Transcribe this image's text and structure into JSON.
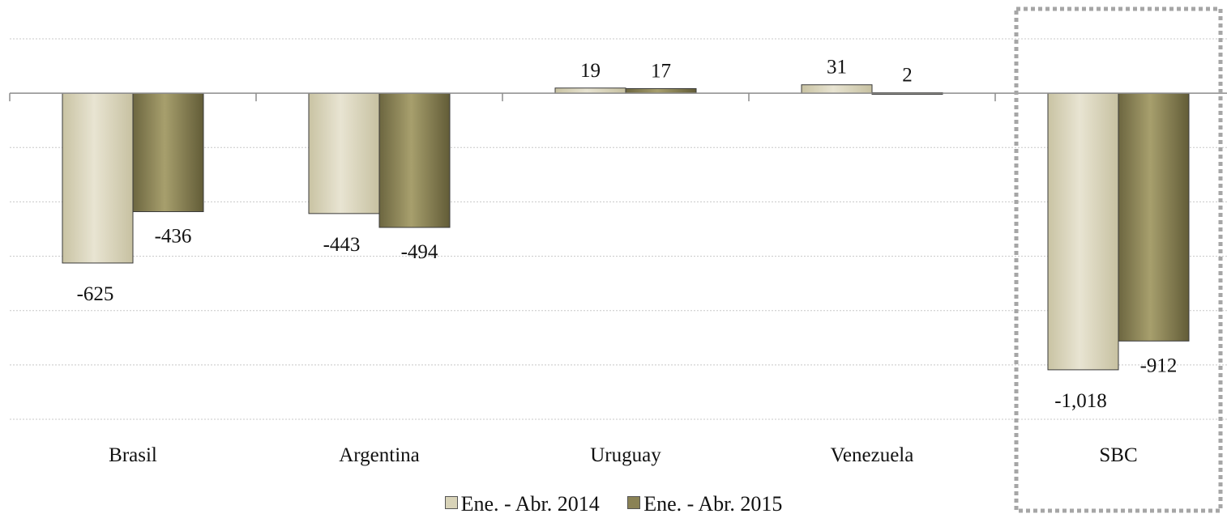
{
  "chart_data": {
    "type": "bar",
    "categories": [
      "Brasil",
      "Argentina",
      "Uruguay",
      "Venezuela",
      "SBC"
    ],
    "series": [
      {
        "name": "Ene. - Abr. 2014",
        "values": [
          -625,
          -443,
          19,
          31,
          -1018
        ],
        "labels": [
          "-625",
          "-443",
          "19",
          "31",
          "-1,018"
        ],
        "color": "#d8d3b8"
      },
      {
        "name": "Ene. - Abr. 2015",
        "values": [
          -436,
          -494,
          17,
          2,
          -912
        ],
        "labels": [
          "-436",
          "-494",
          "17",
          "2",
          "-912"
        ],
        "color": "#8a8255"
      }
    ],
    "ylim": [
      -1200,
      200
    ],
    "gridlines": true,
    "legend_position": "bottom",
    "highlight_category": "SBC"
  }
}
